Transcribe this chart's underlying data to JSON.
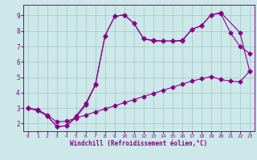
{
  "line1": {
    "x": [
      0,
      1,
      2,
      3,
      4,
      5,
      6,
      7,
      8,
      9,
      10,
      11,
      12,
      13,
      14,
      15,
      16,
      17,
      18,
      19,
      20,
      21,
      22,
      23
    ],
    "y": [
      3.0,
      2.9,
      2.55,
      2.1,
      2.15,
      2.35,
      2.55,
      2.75,
      2.95,
      3.15,
      3.35,
      3.55,
      3.75,
      3.95,
      4.15,
      4.35,
      4.55,
      4.75,
      4.9,
      5.05,
      4.85,
      4.75,
      4.7,
      5.4
    ]
  },
  "line2": {
    "x": [
      0,
      1,
      2,
      3,
      4,
      5,
      6,
      7,
      8,
      9,
      10,
      11,
      12,
      13,
      14,
      15,
      16,
      17,
      18,
      19,
      20,
      21,
      22,
      23
    ],
    "y": [
      3.0,
      2.85,
      2.5,
      1.8,
      1.85,
      2.4,
      3.2,
      4.5,
      7.7,
      8.95,
      9.05,
      8.5,
      7.5,
      7.4,
      7.35,
      7.35,
      7.4,
      8.1,
      8.35,
      9.05,
      9.15,
      7.9,
      7.0,
      6.55
    ]
  },
  "line3": {
    "x": [
      0,
      1,
      2,
      3,
      4,
      5,
      6,
      7,
      8,
      9,
      10,
      11,
      12,
      13,
      14,
      15,
      16,
      17,
      18,
      19,
      20,
      22,
      23
    ],
    "y": [
      3.0,
      2.85,
      2.5,
      1.8,
      1.85,
      2.5,
      3.3,
      4.55,
      7.7,
      8.95,
      9.05,
      8.5,
      7.5,
      7.35,
      7.35,
      7.35,
      7.35,
      8.1,
      8.35,
      9.05,
      9.2,
      7.9,
      5.4
    ]
  },
  "color": "#8B008B",
  "bg_color": "#cce8e8",
  "grid_color": "#aacccc",
  "xlabel": "Windchill (Refroidissement éolien,°C)",
  "xlim": [
    -0.5,
    23.5
  ],
  "ylim": [
    1.5,
    9.7
  ],
  "xticks": [
    0,
    1,
    2,
    3,
    4,
    5,
    6,
    7,
    8,
    9,
    10,
    11,
    12,
    13,
    14,
    15,
    16,
    17,
    18,
    19,
    20,
    21,
    22,
    23
  ],
  "yticks": [
    2,
    3,
    4,
    5,
    6,
    7,
    8,
    9
  ],
  "marker": "D",
  "markersize": 2.5,
  "linewidth": 0.8
}
